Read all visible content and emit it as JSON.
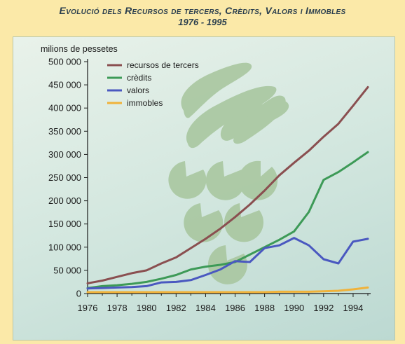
{
  "header": {
    "title": "Evolució dels Recursos de tercers, Crèdits, Valors i Immobles",
    "subtitle": "1976 - 1995"
  },
  "chart_data": {
    "type": "line",
    "title": "Evolució dels Recursos de tercers, Crèdits, Valors i Immobles",
    "subtitle": "1976 - 1995",
    "ylabel": "milions de pessetes",
    "xlabel": "",
    "xlim": [
      1976,
      1995
    ],
    "ylim": [
      0,
      500000
    ],
    "x_ticks": [
      1976,
      1978,
      1980,
      1982,
      1984,
      1986,
      1988,
      1990,
      1992,
      1994
    ],
    "y_ticks": [
      0,
      50000,
      100000,
      150000,
      200000,
      250000,
      300000,
      350000,
      400000,
      450000,
      500000
    ],
    "y_tick_labels": [
      "0",
      "50 000",
      "100 000",
      "150 000",
      "200 000",
      "250 000",
      "300 000",
      "350 000",
      "400 000",
      "450 000",
      "500 000"
    ],
    "x": [
      1976,
      1977,
      1978,
      1979,
      1980,
      1981,
      1982,
      1983,
      1984,
      1985,
      1986,
      1987,
      1988,
      1989,
      1990,
      1991,
      1992,
      1993,
      1994,
      1995
    ],
    "series": [
      {
        "name": "recursos de tercers",
        "color": "#8a4f50",
        "values": [
          22000,
          28000,
          36000,
          44000,
          50000,
          65000,
          78000,
          98000,
          118000,
          140000,
          165000,
          192000,
          222000,
          255000,
          282000,
          308000,
          338000,
          366000,
          405000,
          445000
        ]
      },
      {
        "name": "crèdits",
        "color": "#3d9a57",
        "values": [
          12000,
          16000,
          18000,
          21000,
          25000,
          32000,
          40000,
          52000,
          58000,
          62000,
          68000,
          84000,
          100000,
          116000,
          134000,
          176000,
          245000,
          262000,
          283000,
          305000
        ]
      },
      {
        "name": "valors",
        "color": "#4a58c0",
        "values": [
          11000,
          12000,
          13000,
          14000,
          16000,
          24000,
          25000,
          29000,
          40000,
          52000,
          70000,
          68000,
          98000,
          104000,
          120000,
          104000,
          74000,
          65000,
          112000,
          118000
        ]
      },
      {
        "name": "immobles",
        "color": "#f0b23a",
        "values": [
          3000,
          3000,
          3000,
          3000,
          3000,
          3000,
          3000,
          3000,
          3000,
          3000,
          3000,
          3000,
          3000,
          4000,
          4000,
          4000,
          5000,
          6000,
          9000,
          13000
        ]
      }
    ],
    "legend": "top-left",
    "grid": false
  }
}
